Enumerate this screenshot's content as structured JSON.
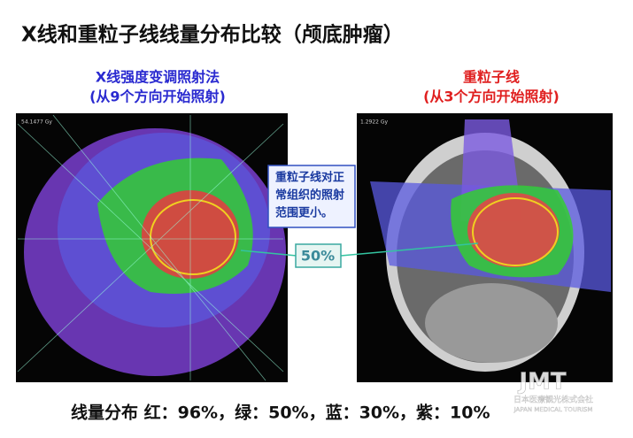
{
  "header": {
    "title": "X线和重粒子线线量分布比较（颅底肿瘤）"
  },
  "panels": [
    {
      "heading": [
        "X线强度变调照射法",
        "(从9个方向开始照射)"
      ],
      "scan_label": "54.1477 Gy"
    },
    {
      "heading": [
        "重粒子线",
        "(从3个方向开始照射)"
      ],
      "scan_label": "1.2922 Gy"
    }
  ],
  "callout": {
    "lines": [
      "重粒子线对正",
      "常组织的照射",
      "范围更小。"
    ]
  },
  "marker": "50%",
  "footer": "线量分布 红：96%，绿：50%，蓝：30%，紫：10%",
  "logo": {
    "mark": "JMT",
    "name": "日本医療観光株式会社",
    "tagline": "JAPAN MEDICAL TOURISM"
  }
}
